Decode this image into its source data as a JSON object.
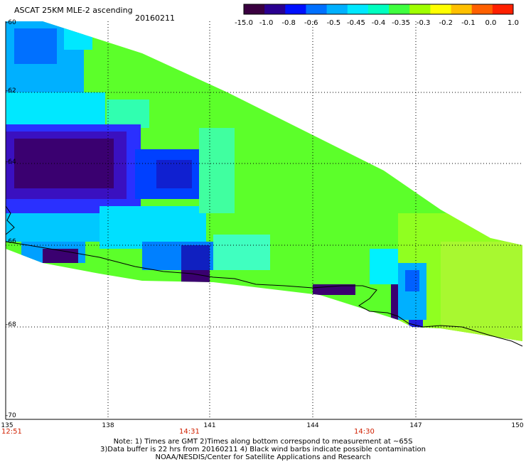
{
  "header": {
    "title": "ASCAT 25KM MLE-2 ascending",
    "date": "20160211"
  },
  "colorbar": {
    "labels": [
      "-15.0",
      "-1.0",
      "-0.8",
      "-0.6",
      "-0.5",
      "-0.45",
      "-0.4",
      "-0.35",
      "-0.3",
      "-0.2",
      "-0.1",
      "0.0",
      "1.0"
    ],
    "colors": [
      "#3a0040",
      "#2a0090",
      "#0010ff",
      "#0070ff",
      "#00b0ff",
      "#00e8ff",
      "#00ffc0",
      "#40ff40",
      "#a0ff00",
      "#ffff00",
      "#ffc000",
      "#ff6000",
      "#ff2000"
    ]
  },
  "axes": {
    "lat_labels": [
      "-60",
      "-62",
      "-64",
      "-66",
      "-68",
      "-70"
    ],
    "lon_labels": [
      "135",
      "138",
      "141",
      "144",
      "147",
      "150"
    ]
  },
  "times": {
    "t1": "12:51",
    "t2": "14:31",
    "t3": "14:30"
  },
  "notes": {
    "line1": "Note: 1) Times are GMT 2)Times along bottom correspond to measurement at ~65S",
    "line2": "3)Data buffer is 22 hrs from 20160211 4) Black wind barbs indicate possible contamination",
    "line3": "NOAA/NESDIS/Center for Satellite Applications and Research"
  }
}
